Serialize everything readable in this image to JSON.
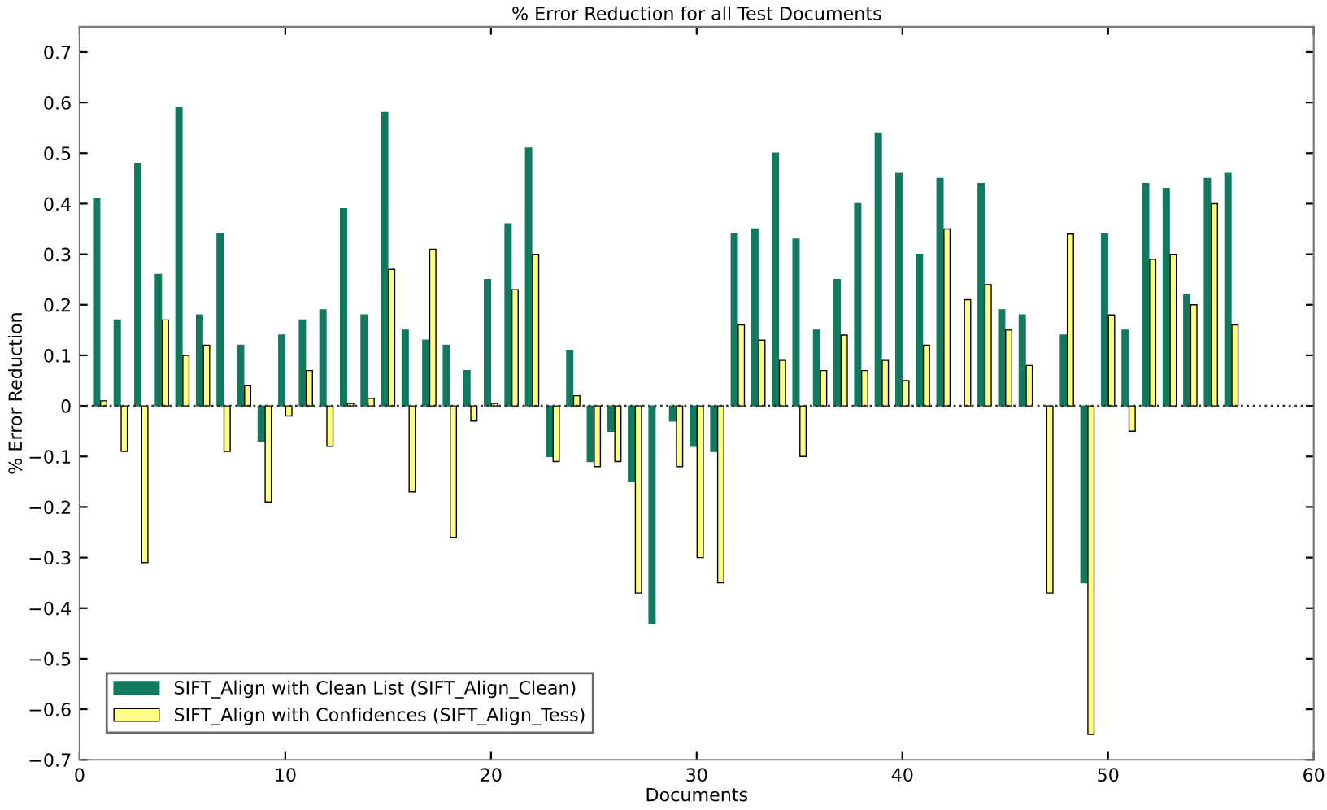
{
  "chart_data": {
    "type": "bar",
    "title": "% Error Reduction for all Test Documents",
    "xlabel": "Documents",
    "ylabel": "% Error Reduction",
    "x": [
      1,
      2,
      3,
      4,
      5,
      6,
      7,
      8,
      9,
      10,
      11,
      12,
      13,
      14,
      15,
      16,
      17,
      18,
      19,
      20,
      21,
      22,
      23,
      24,
      25,
      26,
      27,
      28,
      29,
      30,
      31,
      32,
      33,
      34,
      35,
      36,
      37,
      38,
      39,
      40,
      41,
      42,
      43,
      44,
      45,
      46,
      47,
      48,
      49,
      50,
      51,
      52,
      53,
      54,
      55,
      56
    ],
    "series": [
      {
        "name": "SIFT_Align with Clean List (SIFT_Align_Clean)",
        "color": "#117a5e",
        "values": [
          0.41,
          0.17,
          0.48,
          0.26,
          0.59,
          0.18,
          0.34,
          0.12,
          -0.07,
          0.14,
          0.17,
          0.19,
          0.39,
          0.18,
          0.58,
          0.15,
          0.13,
          0.12,
          0.07,
          0.25,
          0.36,
          0.51,
          -0.1,
          0.11,
          -0.11,
          -0.05,
          -0.15,
          -0.43,
          -0.03,
          -0.08,
          -0.09,
          0.34,
          0.35,
          0.5,
          0.33,
          0.15,
          0.25,
          0.4,
          0.54,
          0.46,
          0.3,
          0.45,
          null,
          0.44,
          0.19,
          0.18,
          null,
          0.14,
          -0.35,
          0.34,
          0.15,
          0.44,
          0.43,
          0.22,
          0.45,
          0.46
        ]
      },
      {
        "name": "SIFT_Align with Confidences (SIFT_Align_Tess)",
        "color": "#ffff80",
        "values": [
          0.01,
          -0.09,
          -0.31,
          0.17,
          0.1,
          0.12,
          -0.09,
          0.04,
          -0.19,
          -0.02,
          0.07,
          -0.08,
          0.005,
          0.015,
          0.27,
          -0.17,
          0.31,
          -0.26,
          -0.03,
          0.005,
          0.23,
          0.3,
          -0.11,
          0.02,
          -0.12,
          -0.11,
          -0.37,
          null,
          -0.12,
          -0.3,
          -0.35,
          0.16,
          0.13,
          0.09,
          -0.1,
          0.07,
          0.14,
          0.07,
          0.09,
          0.05,
          0.12,
          0.35,
          0.21,
          0.24,
          0.15,
          0.08,
          -0.37,
          0.34,
          -0.65,
          0.18,
          -0.05,
          0.29,
          0.3,
          0.2,
          0.4,
          0.16
        ]
      }
    ],
    "xlim": [
      0,
      60
    ],
    "xticks": [
      0,
      10,
      20,
      30,
      40,
      50,
      60
    ],
    "ylim": [
      -0.7,
      0.75
    ],
    "yticks": [
      {
        "value": -0.7,
        "label": "−0.7"
      },
      {
        "value": -0.6,
        "label": "−0.6"
      },
      {
        "value": -0.5,
        "label": "−0.5"
      },
      {
        "value": -0.4,
        "label": "−0.4"
      },
      {
        "value": -0.3,
        "label": "−0.3"
      },
      {
        "value": -0.2,
        "label": "−0.2"
      },
      {
        "value": -0.1,
        "label": "−0.1"
      },
      0,
      0.1,
      0.2,
      0.3,
      0.4,
      0.5,
      0.6,
      0.7
    ],
    "ref_lines": [
      {
        "axis": "y",
        "value": 0,
        "color": "#333333",
        "line_style": "dotted"
      }
    ],
    "grid": false,
    "legend": "bottom left"
  }
}
